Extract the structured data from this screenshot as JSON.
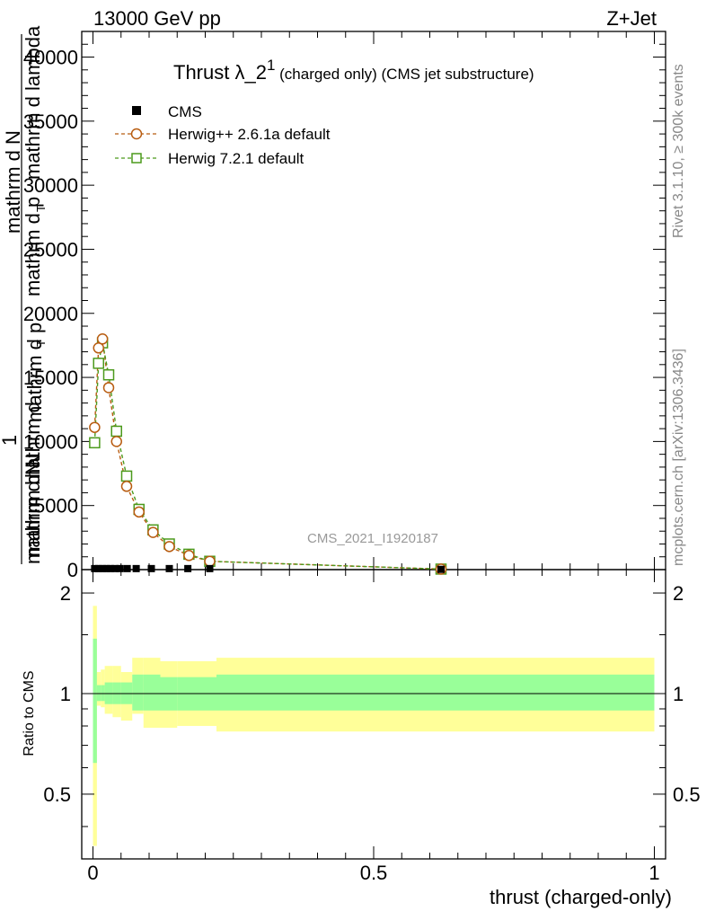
{
  "header": {
    "left": "13000 GeV pp",
    "right": "Z+Jet"
  },
  "title": {
    "main": "Thrust λ_2",
    "superscript": "1",
    "suffix": " (charged only) (CMS jet substructure)"
  },
  "ylabel": {
    "numerator": "1",
    "lines": [
      "mathrm d N",
      "mathrm d p",
      "T",
      "mathrm d lambda",
      "mathrm d p",
      "T",
      "mathrm d",
      "mathrm d N",
      "mathrm d N"
    ]
  },
  "xlabel": "thrust (charged-only)",
  "ratio_ylabel": "Ratio to CMS",
  "side_text": {
    "top": "Rivet 3.1.10, ≥ 300k events",
    "bottom": "mcplots.cern.ch [arXiv:1306.3436]"
  },
  "watermark": "CMS_2021_I1920187",
  "legend": [
    {
      "label": "CMS",
      "color": "#000000",
      "marker": "filled-square"
    },
    {
      "label": "Herwig++ 2.6.1a default",
      "color": "#b85c10",
      "marker": "open-circle"
    },
    {
      "label": "Herwig 7.2.1 default",
      "color": "#4c9a1c",
      "marker": "open-square"
    }
  ],
  "chart_data": [
    {
      "type": "line",
      "panel": "main",
      "xlim": [
        -0.02,
        1.02
      ],
      "ylim": [
        0,
        42000
      ],
      "yticks": [
        "0",
        "5000",
        "10000",
        "15000",
        "20000",
        "25000",
        "30000",
        "35000",
        "40000"
      ],
      "ytick_values": [
        0,
        5000,
        10000,
        15000,
        20000,
        25000,
        30000,
        35000,
        40000
      ],
      "series": [
        {
          "name": "CMS",
          "color": "#000000",
          "x": [
            0.003,
            0.01,
            0.017,
            0.024,
            0.031,
            0.039,
            0.048,
            0.061,
            0.077,
            0.104,
            0.136,
            0.169,
            0.208,
            0.62
          ],
          "y": [
            80,
            80,
            80,
            80,
            80,
            80,
            80,
            80,
            80,
            80,
            80,
            80,
            80,
            20
          ]
        },
        {
          "name": "Herwig++ 2.6.1a default",
          "color": "#b85c10",
          "x": [
            0.003,
            0.01,
            0.017,
            0.028,
            0.042,
            0.06,
            0.082,
            0.107,
            0.136,
            0.171,
            0.208,
            0.62
          ],
          "y": [
            11100,
            17300,
            18000,
            14200,
            10000,
            6500,
            4500,
            2900,
            1800,
            1100,
            650,
            40
          ]
        },
        {
          "name": "Herwig 7.2.1 default",
          "color": "#4c9a1c",
          "x": [
            0.003,
            0.01,
            0.017,
            0.028,
            0.042,
            0.06,
            0.082,
            0.107,
            0.136,
            0.171,
            0.208,
            0.62
          ],
          "y": [
            9900,
            16100,
            17700,
            15200,
            10800,
            7300,
            4700,
            3100,
            2000,
            1200,
            650,
            40
          ]
        }
      ]
    },
    {
      "type": "area",
      "panel": "ratio",
      "xlim": [
        -0.02,
        1.02
      ],
      "ylim": [
        0.32,
        2.35
      ],
      "log_scale": true,
      "xticks": [
        "0",
        "0.5",
        "1"
      ],
      "xtick_values": [
        0,
        0.5,
        1
      ],
      "yticks": [
        "0.5",
        "1",
        "2"
      ],
      "ytick_values": [
        0.5,
        1,
        2
      ],
      "reference_line": 1,
      "bands": {
        "x_edges": [
          0,
          0.007,
          0.014,
          0.021,
          0.035,
          0.05,
          0.07,
          0.09,
          0.12,
          0.15,
          0.22,
          1.0
        ],
        "outer_lo": [
          0.35,
          0.92,
          0.91,
          0.87,
          0.85,
          0.83,
          0.87,
          0.79,
          0.79,
          0.8,
          0.77
        ],
        "outer_hi": [
          1.83,
          1.16,
          1.18,
          1.21,
          1.21,
          1.16,
          1.28,
          1.28,
          1.25,
          1.25,
          1.28
        ],
        "inner_lo": [
          0.62,
          0.95,
          0.95,
          0.93,
          0.93,
          0.93,
          0.89,
          0.89,
          0.89,
          0.89,
          0.89
        ],
        "inner_hi": [
          1.46,
          1.06,
          1.06,
          1.08,
          1.08,
          1.08,
          1.14,
          1.14,
          1.12,
          1.12,
          1.14
        ]
      },
      "band_colors": {
        "outer": "#ffff99",
        "inner": "#99ff99"
      }
    }
  ]
}
